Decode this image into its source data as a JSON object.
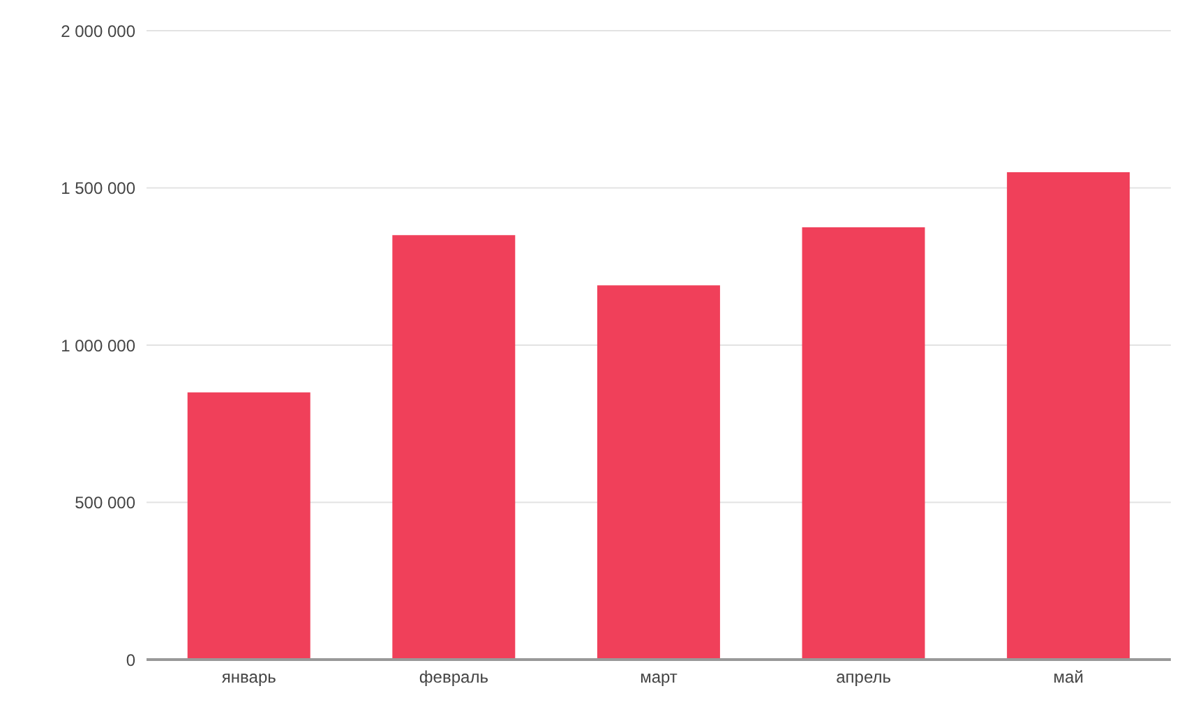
{
  "chart_data": {
    "type": "bar",
    "categories": [
      "январь",
      "февраль",
      "март",
      "апрель",
      "май"
    ],
    "values": [
      850000,
      1350000,
      1190000,
      1375000,
      1550000
    ],
    "color": "#f0405a",
    "ylim": [
      0,
      2000000
    ],
    "yticks": [
      {
        "value": 0,
        "label": "0"
      },
      {
        "value": 500000,
        "label": "500 000"
      },
      {
        "value": 1000000,
        "label": "1 000 000"
      },
      {
        "value": 1500000,
        "label": "1 500 000"
      },
      {
        "value": 2000000,
        "label": "2 000 000"
      }
    ],
    "grid": "y"
  }
}
